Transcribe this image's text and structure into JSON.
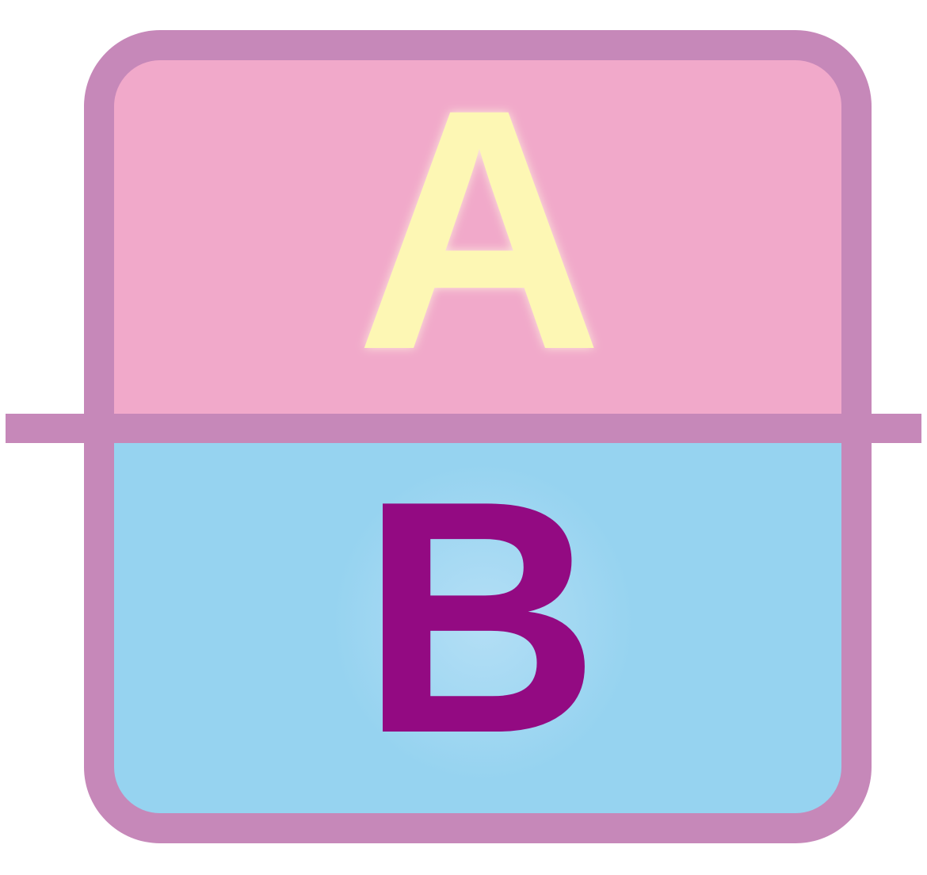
{
  "icon": {
    "name": "a-over-b-icon",
    "top_letter": "A",
    "bottom_letter": "B"
  },
  "colors": {
    "frame": "#c688b9",
    "top_fill": "#f1a9ca",
    "bottom_fill": "#96d3f0",
    "bottom_glow": "#b7e0f6",
    "top_letter": "#fdf7b4",
    "top_letter_glow": "#fffbe0",
    "bottom_letter": "#930a82",
    "background": "#ffffff"
  }
}
